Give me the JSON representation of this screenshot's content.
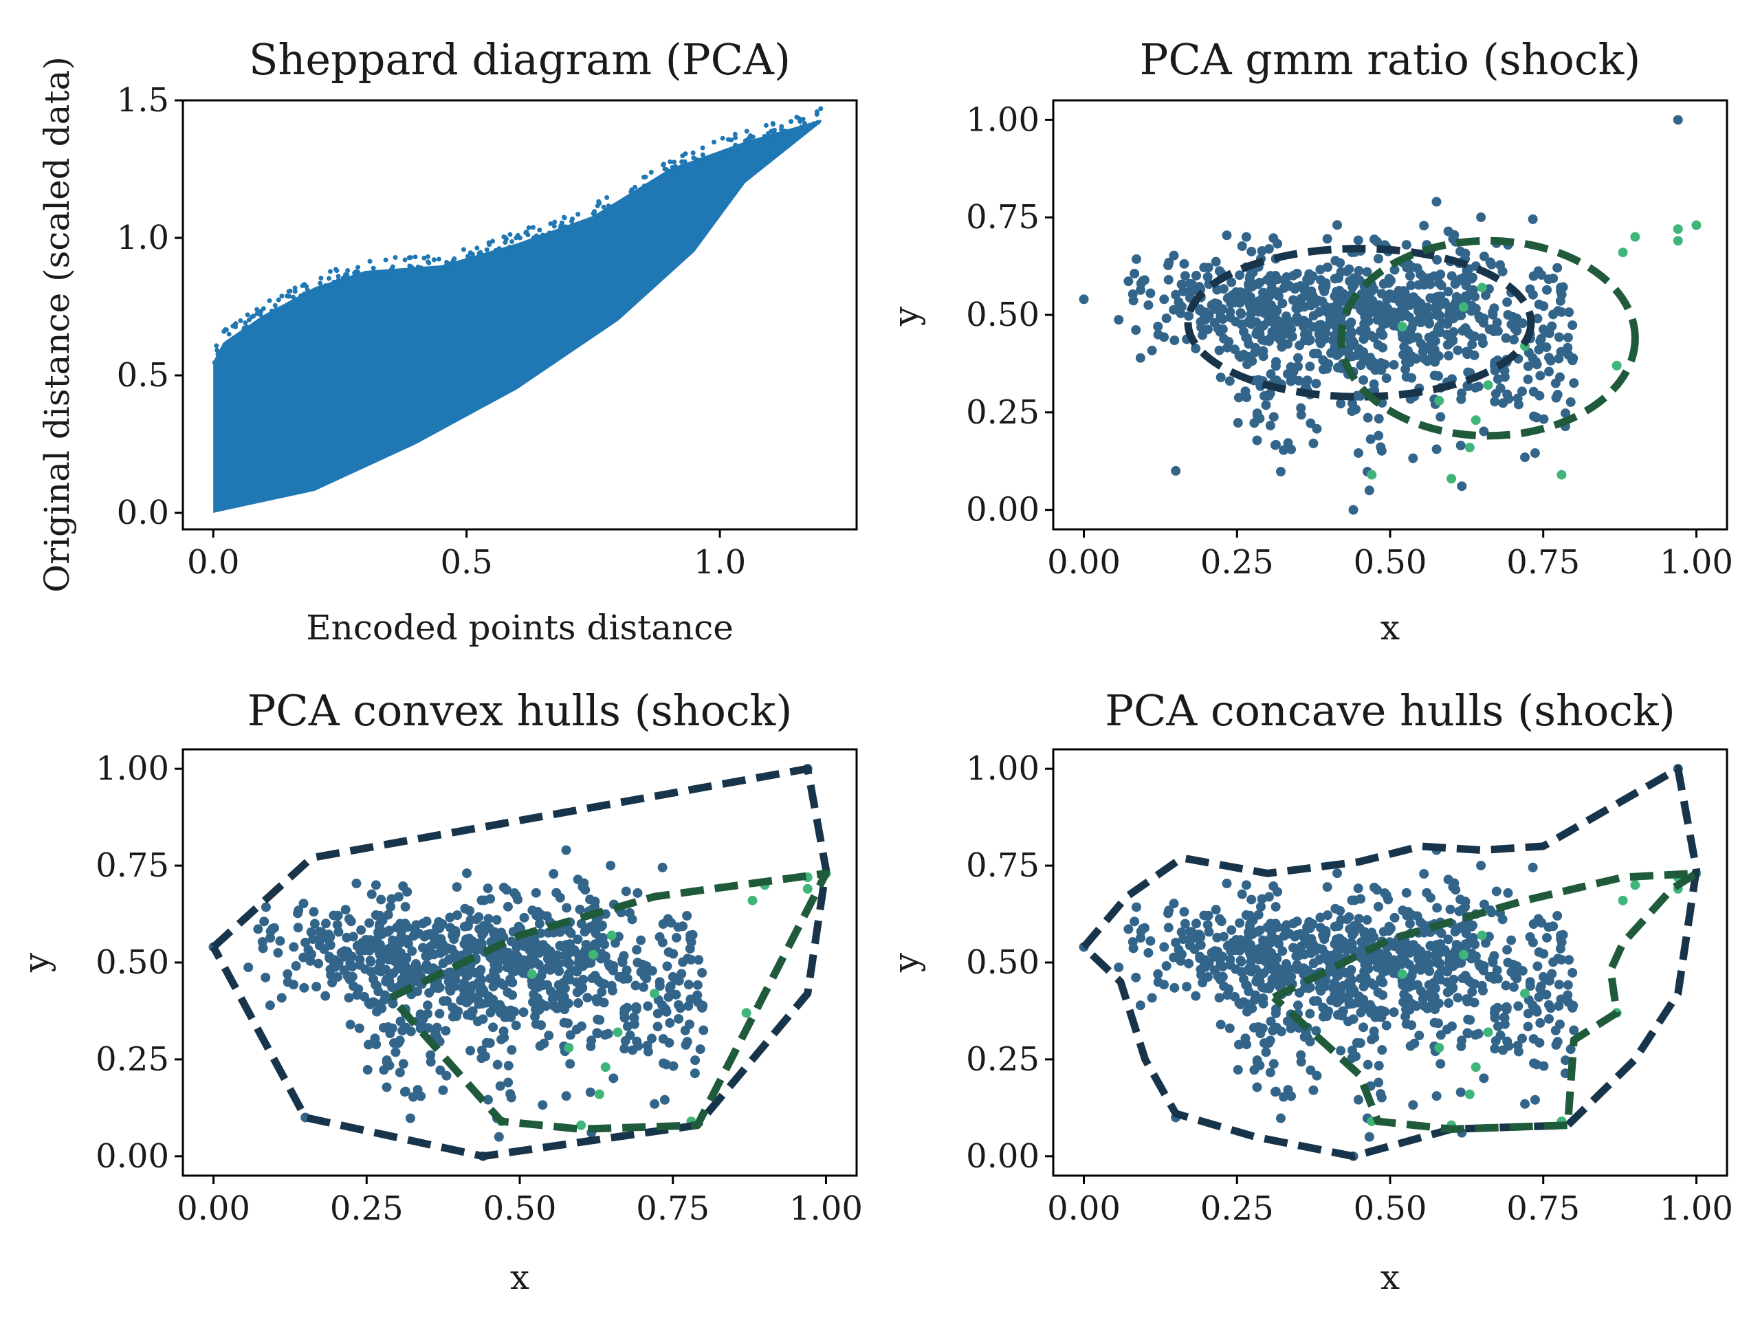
{
  "colors": {
    "scatter_blue": "#1f77b4",
    "cluster_blue": "#33658a",
    "cluster_green": "#3fb57a",
    "hull_dark": "#17344a",
    "hull_green": "#1f5a3a"
  },
  "chart_data": [
    {
      "id": "sheppard",
      "type": "scatter",
      "title": "Sheppard diagram (PCA)",
      "xlabel": "Encoded points distance",
      "ylabel": "Original distance (scaled data)",
      "xlim": [
        -0.06,
        1.27
      ],
      "ylim": [
        -0.06,
        1.5
      ],
      "xticks": [
        0.0,
        0.5,
        1.0
      ],
      "xtick_labels": [
        "0.0",
        "0.5",
        "1.0"
      ],
      "yticks": [
        0.0,
        0.5,
        1.0,
        1.5
      ],
      "ytick_labels": [
        "0.0",
        "0.5",
        "1.0",
        "1.5"
      ],
      "grid": false,
      "series": [
        {
          "color": "#1f77b4",
          "points_summary": "dense band from (0,0) to (1.2,1.42)",
          "upper_envelope": [
            [
              0.0,
              0.55
            ],
            [
              0.02,
              0.62
            ],
            [
              0.1,
              0.72
            ],
            [
              0.2,
              0.82
            ],
            [
              0.3,
              0.88
            ],
            [
              0.45,
              0.9
            ],
            [
              0.6,
              0.98
            ],
            [
              0.75,
              1.08
            ],
            [
              0.9,
              1.25
            ],
            [
              1.05,
              1.35
            ],
            [
              1.2,
              1.43
            ]
          ],
          "lower_envelope": [
            [
              0.0,
              0.0
            ],
            [
              0.2,
              0.08
            ],
            [
              0.4,
              0.25
            ],
            [
              0.6,
              0.45
            ],
            [
              0.8,
              0.7
            ],
            [
              0.95,
              0.95
            ],
            [
              1.05,
              1.2
            ],
            [
              1.2,
              1.42
            ]
          ]
        }
      ]
    },
    {
      "id": "gmm",
      "type": "scatter",
      "title": "PCA gmm ratio (shock)",
      "xlabel": "x",
      "ylabel": "y",
      "xlim": [
        -0.05,
        1.05
      ],
      "ylim": [
        -0.05,
        1.05
      ],
      "xticks": [
        0.0,
        0.25,
        0.5,
        0.75,
        1.0
      ],
      "xtick_labels": [
        "0.00",
        "0.25",
        "0.50",
        "0.75",
        "1.00"
      ],
      "yticks": [
        0.0,
        0.25,
        0.5,
        0.75,
        1.0
      ],
      "ytick_labels": [
        "0.00",
        "0.25",
        "0.50",
        "0.75",
        "1.00"
      ],
      "grid": false,
      "ellipses": [
        {
          "cluster": "dark",
          "cx": 0.45,
          "cy": 0.48,
          "rx": 0.28,
          "ry": 0.19
        },
        {
          "cluster": "green",
          "cx": 0.66,
          "cy": 0.44,
          "rx": 0.24,
          "ry": 0.25
        }
      ]
    },
    {
      "id": "convex",
      "type": "scatter",
      "title": "PCA convex hulls (shock)",
      "xlabel": "x",
      "ylabel": "y",
      "xlim": [
        -0.05,
        1.05
      ],
      "ylim": [
        -0.05,
        1.05
      ],
      "xticks": [
        0.0,
        0.25,
        0.5,
        0.75,
        1.0
      ],
      "xtick_labels": [
        "0.00",
        "0.25",
        "0.50",
        "0.75",
        "1.00"
      ],
      "yticks": [
        0.0,
        0.25,
        0.5,
        0.75,
        1.0
      ],
      "ytick_labels": [
        "0.00",
        "0.25",
        "0.50",
        "0.75",
        "1.00"
      ],
      "grid": false,
      "hulls": [
        {
          "cluster": "dark",
          "points": [
            [
              0.0,
              0.54
            ],
            [
              0.16,
              0.77
            ],
            [
              0.97,
              1.0
            ],
            [
              1.0,
              0.74
            ],
            [
              0.97,
              0.42
            ],
            [
              0.79,
              0.08
            ],
            [
              0.44,
              0.0
            ],
            [
              0.15,
              0.1
            ],
            [
              0.0,
              0.54
            ]
          ]
        },
        {
          "cluster": "green",
          "points": [
            [
              0.29,
              0.41
            ],
            [
              0.5,
              0.57
            ],
            [
              0.72,
              0.67
            ],
            [
              1.0,
              0.73
            ],
            [
              0.79,
              0.08
            ],
            [
              0.6,
              0.07
            ],
            [
              0.47,
              0.09
            ],
            [
              0.29,
              0.41
            ]
          ]
        }
      ]
    },
    {
      "id": "concave",
      "type": "scatter",
      "title": "PCA concave hulls (shock)",
      "xlabel": "x",
      "ylabel": "y",
      "xlim": [
        -0.05,
        1.05
      ],
      "ylim": [
        -0.05,
        1.05
      ],
      "xticks": [
        0.0,
        0.25,
        0.5,
        0.75,
        1.0
      ],
      "xtick_labels": [
        "0.00",
        "0.25",
        "0.50",
        "0.75",
        "1.00"
      ],
      "yticks": [
        0.0,
        0.25,
        0.5,
        0.75,
        1.0
      ],
      "ytick_labels": [
        "0.00",
        "0.25",
        "0.50",
        "0.75",
        "1.00"
      ],
      "grid": false,
      "hulls": [
        {
          "cluster": "dark",
          "points": [
            [
              0.0,
              0.54
            ],
            [
              0.07,
              0.67
            ],
            [
              0.16,
              0.77
            ],
            [
              0.3,
              0.73
            ],
            [
              0.45,
              0.76
            ],
            [
              0.55,
              0.8
            ],
            [
              0.65,
              0.79
            ],
            [
              0.75,
              0.8
            ],
            [
              0.97,
              1.0
            ],
            [
              1.0,
              0.74
            ],
            [
              0.97,
              0.42
            ],
            [
              0.9,
              0.25
            ],
            [
              0.79,
              0.08
            ],
            [
              0.6,
              0.07
            ],
            [
              0.44,
              0.0
            ],
            [
              0.28,
              0.05
            ],
            [
              0.15,
              0.11
            ],
            [
              0.1,
              0.25
            ],
            [
              0.06,
              0.45
            ],
            [
              0.0,
              0.54
            ]
          ]
        },
        {
          "cluster": "green",
          "points": [
            [
              0.31,
              0.41
            ],
            [
              0.5,
              0.56
            ],
            [
              0.72,
              0.66
            ],
            [
              0.88,
              0.72
            ],
            [
              1.0,
              0.73
            ],
            [
              0.96,
              0.69
            ],
            [
              0.88,
              0.55
            ],
            [
              0.86,
              0.48
            ],
            [
              0.87,
              0.37
            ],
            [
              0.8,
              0.3
            ],
            [
              0.79,
              0.08
            ],
            [
              0.6,
              0.07
            ],
            [
              0.48,
              0.09
            ],
            [
              0.45,
              0.21
            ],
            [
              0.31,
              0.41
            ]
          ]
        }
      ]
    }
  ]
}
